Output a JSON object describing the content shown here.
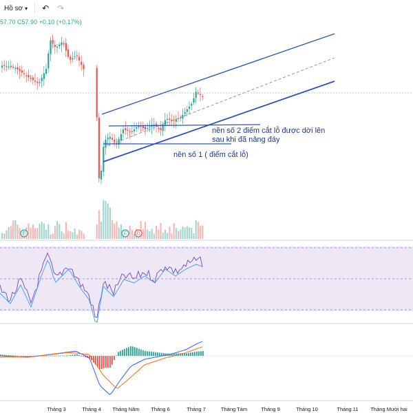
{
  "toolbar": {
    "profile_label": "Hồ sơ",
    "profile_icon": "chevron-down-icon",
    "undo_icon": "undo-icon",
    "redo_icon": "redo-icon"
  },
  "legend": {
    "open_part": "57.70",
    "close_part": "C57.90",
    "change": "+0.10 (+0.17%)"
  },
  "annotations": {
    "line1": "nền số 2 điểm cắt lỗ được dời lên",
    "line2": "sau khi đã nâng đáy",
    "line3": "nền số 1 ( điểm cắt lỗ)"
  },
  "markers": [
    "E",
    "F",
    "D"
  ],
  "colors": {
    "up": "#26a69a",
    "down": "#ef5350",
    "trendline": "#2a52be",
    "rsi_band": "#ede7f6",
    "rsi_line": "#7e57c2",
    "rsi_ma": "#42a5f5",
    "macd": "#2962ff",
    "signal": "#ff6d00"
  },
  "chart_data": {
    "type": "candlestick",
    "x_tick_labels": [
      "Tháng 3",
      "Tháng 4",
      "Tháng Năm",
      "Tháng 6",
      "Tháng 7",
      "Tháng Tám",
      "Tháng 9",
      "Tháng 10",
      "Tháng 11",
      "Tháng Mười hai"
    ],
    "last_close": 57.9,
    "panes": [
      "price",
      "volume",
      "rsi",
      "macd"
    ]
  }
}
